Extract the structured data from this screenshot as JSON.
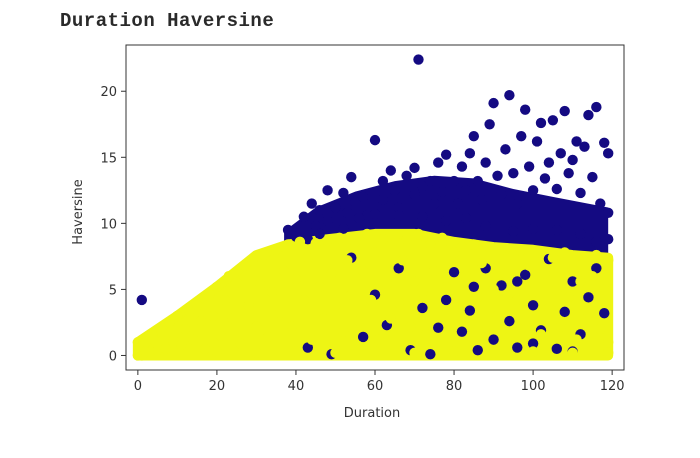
{
  "page": {
    "title": "Duration Haversine"
  },
  "chart_data": {
    "type": "scatter",
    "title": "",
    "xlabel": "Duration",
    "ylabel": "Haversine",
    "xlim": [
      -3,
      123
    ],
    "ylim": [
      -1.1,
      23.5
    ],
    "xticks": [
      0,
      20,
      40,
      60,
      80,
      100,
      120
    ],
    "yticks": [
      0,
      5,
      10,
      15,
      20
    ],
    "grid": false,
    "legend": "none",
    "colors": {
      "cluster_a": "#eef514",
      "cluster_b": "#140a82",
      "axes": "#333333"
    },
    "series": [
      {
        "color": "#140a82",
        "points": [
          [
            1,
            4.2
          ],
          [
            38,
            9.5
          ],
          [
            40,
            9.0
          ],
          [
            42,
            10.5
          ],
          [
            44,
            11.5
          ],
          [
            45,
            9.8
          ],
          [
            46,
            11
          ],
          [
            48,
            10.2
          ],
          [
            48,
            12.5
          ],
          [
            50,
            11.2
          ],
          [
            52,
            12.3
          ],
          [
            53,
            10.8
          ],
          [
            54,
            13.5
          ],
          [
            55,
            11.6
          ],
          [
            57,
            12
          ],
          [
            58,
            10.6
          ],
          [
            60,
            16.3
          ],
          [
            62,
            11.8
          ],
          [
            62,
            13.2
          ],
          [
            64,
            14
          ],
          [
            65,
            12.5
          ],
          [
            66,
            11.2
          ],
          [
            68,
            13.6
          ],
          [
            70,
            12.2
          ],
          [
            70,
            14.2
          ],
          [
            71,
            22.4
          ],
          [
            72,
            12.8
          ],
          [
            74,
            13.2
          ],
          [
            75,
            11.5
          ],
          [
            76,
            14.6
          ],
          [
            77,
            12.4
          ],
          [
            78,
            15.2
          ],
          [
            80,
            13.2
          ],
          [
            81,
            11.5
          ],
          [
            82,
            14.3
          ],
          [
            83,
            12.5
          ],
          [
            84,
            15.3
          ],
          [
            85,
            16.6
          ],
          [
            86,
            13.2
          ],
          [
            87,
            11.8
          ],
          [
            88,
            14.6
          ],
          [
            89,
            17.5
          ],
          [
            90,
            19.1
          ],
          [
            91,
            13.6
          ],
          [
            92,
            12.2
          ],
          [
            93,
            15.6
          ],
          [
            94,
            19.7
          ],
          [
            95,
            13.8
          ],
          [
            96,
            11.5
          ],
          [
            97,
            16.6
          ],
          [
            98,
            18.6
          ],
          [
            99,
            14.3
          ],
          [
            100,
            12.5
          ],
          [
            101,
            16.2
          ],
          [
            102,
            17.6
          ],
          [
            103,
            13.4
          ],
          [
            104,
            14.6
          ],
          [
            105,
            17.8
          ],
          [
            106,
            12.6
          ],
          [
            107,
            15.3
          ],
          [
            108,
            18.5
          ],
          [
            109,
            13.8
          ],
          [
            110,
            14.8
          ],
          [
            111,
            16.2
          ],
          [
            112,
            12.3
          ],
          [
            113,
            15.8
          ],
          [
            114,
            18.2
          ],
          [
            115,
            13.5
          ],
          [
            116,
            18.8
          ],
          [
            117,
            11.5
          ],
          [
            118,
            16.1
          ],
          [
            119,
            15.3
          ],
          [
            119,
            10.8
          ],
          [
            119,
            8.8
          ],
          [
            116,
            8.6
          ],
          [
            112,
            9.2
          ],
          [
            106,
            9.5
          ],
          [
            100,
            9.6
          ],
          [
            95,
            9.4
          ],
          [
            88,
            9.8
          ],
          [
            83,
            10.4
          ],
          [
            78,
            10.2
          ],
          [
            72,
            10.5
          ],
          [
            66,
            10.6
          ],
          [
            60,
            10.7
          ],
          [
            56,
            10.4
          ],
          [
            52,
            9.6
          ],
          [
            46,
            9.2
          ],
          [
            43,
            8.8
          ],
          [
            43,
            0.6
          ],
          [
            49,
            0.1
          ],
          [
            54,
            7.4
          ],
          [
            57,
            1.4
          ],
          [
            60,
            4.6
          ],
          [
            63,
            2.3
          ],
          [
            66,
            6.6
          ],
          [
            69,
            0.4
          ],
          [
            72,
            3.6
          ],
          [
            74,
            0.1
          ],
          [
            78,
            4.2
          ],
          [
            80,
            6.3
          ],
          [
            82,
            1.8
          ],
          [
            84,
            3.4
          ],
          [
            86,
            0.4
          ],
          [
            88,
            6.6
          ],
          [
            90,
            1.2
          ],
          [
            92,
            5.3
          ],
          [
            94,
            2.6
          ],
          [
            96,
            0.6
          ],
          [
            98,
            6.1
          ],
          [
            100,
            3.8
          ],
          [
            102,
            1.9
          ],
          [
            104,
            7.3
          ],
          [
            106,
            0.5
          ],
          [
            108,
            3.3
          ],
          [
            110,
            5.6
          ],
          [
            112,
            1.6
          ],
          [
            114,
            4.4
          ],
          [
            116,
            6.6
          ],
          [
            118,
            3.2
          ],
          [
            110,
            0.3
          ],
          [
            100,
            0.9
          ],
          [
            96,
            5.6
          ],
          [
            85,
            5.2
          ],
          [
            76,
            2.1
          ]
        ]
      },
      {
        "color": "#eef514",
        "points": [
          [
            0,
            0
          ],
          [
            0,
            1
          ],
          [
            1,
            0
          ],
          [
            1,
            0.7
          ],
          [
            2,
            1
          ],
          [
            2,
            0.3
          ],
          [
            4,
            1.2
          ],
          [
            5,
            0.4
          ],
          [
            6,
            1.8
          ],
          [
            7,
            0.5
          ],
          [
            8,
            2.5
          ],
          [
            9,
            1.1
          ],
          [
            10,
            3.0
          ],
          [
            11,
            0.8
          ],
          [
            12,
            2
          ],
          [
            13,
            3.4
          ],
          [
            14,
            1.2
          ],
          [
            15,
            3.8
          ],
          [
            16,
            2.6
          ],
          [
            17,
            0.5
          ],
          [
            18,
            4.6
          ],
          [
            19,
            3
          ],
          [
            20,
            5.2
          ],
          [
            21,
            1.5
          ],
          [
            22,
            4.2
          ],
          [
            23,
            6
          ],
          [
            24,
            2.8
          ],
          [
            25,
            5.5
          ],
          [
            26,
            0.9
          ],
          [
            27,
            6.8
          ],
          [
            28,
            3.8
          ],
          [
            29,
            7.2
          ],
          [
            30,
            2.2
          ],
          [
            31,
            5.4
          ],
          [
            32,
            7.6
          ],
          [
            33,
            1.4
          ],
          [
            34,
            4.8
          ],
          [
            35,
            8.0
          ],
          [
            36,
            3.2
          ],
          [
            37,
            6.4
          ],
          [
            38,
            8.4
          ],
          [
            39,
            2.2
          ],
          [
            40,
            5.8
          ],
          [
            41,
            8.6
          ],
          [
            42,
            4.2
          ],
          [
            43,
            7.4
          ],
          [
            44,
            1.2
          ],
          [
            45,
            8.5
          ],
          [
            46,
            5.2
          ],
          [
            47,
            2.8
          ],
          [
            48,
            8.7
          ],
          [
            49,
            6.2
          ],
          [
            50,
            3.8
          ],
          [
            51,
            8.9
          ],
          [
            52,
            1.8
          ],
          [
            53,
            7.2
          ],
          [
            54,
            4.6
          ],
          [
            55,
            8.6
          ],
          [
            56,
            2.6
          ],
          [
            57,
            6.4
          ],
          [
            58,
            9.2
          ],
          [
            59,
            4.2
          ],
          [
            60,
            7.8
          ],
          [
            61,
            1.2
          ],
          [
            62,
            8.8
          ],
          [
            63,
            5.4
          ],
          [
            64,
            2.8
          ],
          [
            65,
            9.0
          ],
          [
            66,
            4
          ],
          [
            67,
            7.2
          ],
          [
            68,
            8.8
          ],
          [
            69,
            2.2
          ],
          [
            70,
            5.6
          ],
          [
            71,
            9.2
          ],
          [
            72,
            4.8
          ],
          [
            73,
            1.6
          ],
          [
            74,
            8.4
          ],
          [
            75,
            6.4
          ],
          [
            76,
            3.2
          ],
          [
            77,
            8.9
          ],
          [
            78,
            5.2
          ],
          [
            79,
            1.3
          ],
          [
            80,
            7.8
          ],
          [
            81,
            3.8
          ],
          [
            82,
            8.2
          ],
          [
            83,
            6.0
          ],
          [
            84,
            2.4
          ],
          [
            85,
            8.4
          ],
          [
            86,
            4.4
          ],
          [
            87,
            7.0
          ],
          [
            88,
            1.8
          ],
          [
            89,
            8.2
          ],
          [
            90,
            5.0
          ],
          [
            91,
            3.0
          ],
          [
            92,
            8.0
          ],
          [
            93,
            6.2
          ],
          [
            94,
            1.4
          ],
          [
            95,
            7.6
          ],
          [
            96,
            4.2
          ],
          [
            97,
            8.0
          ],
          [
            98,
            2.6
          ],
          [
            99,
            6.8
          ],
          [
            100,
            4.8
          ],
          [
            101,
            7.8
          ],
          [
            102,
            1.6
          ],
          [
            103,
            6.2
          ],
          [
            104,
            3.6
          ],
          [
            105,
            7.4
          ],
          [
            106,
            5.0
          ],
          [
            107,
            2.2
          ],
          [
            108,
            7.8
          ],
          [
            109,
            4.4
          ],
          [
            110,
            6.6
          ],
          [
            111,
            1.2
          ],
          [
            112,
            5.6
          ],
          [
            113,
            7.4
          ],
          [
            114,
            3.2
          ],
          [
            115,
            6.0
          ],
          [
            116,
            7.6
          ],
          [
            117,
            2.0
          ],
          [
            118,
            5.0
          ],
          [
            119,
            7.2
          ],
          [
            119,
            1.0
          ],
          [
            119,
            0.2
          ],
          [
            110,
            0.2
          ],
          [
            100,
            0.3
          ],
          [
            90,
            0.2
          ],
          [
            80,
            0.3
          ],
          [
            70,
            0.2
          ],
          [
            60,
            0.3
          ],
          [
            50,
            0.2
          ],
          [
            40,
            0.3
          ],
          [
            30,
            0.2
          ],
          [
            20,
            0.3
          ]
        ]
      }
    ]
  }
}
